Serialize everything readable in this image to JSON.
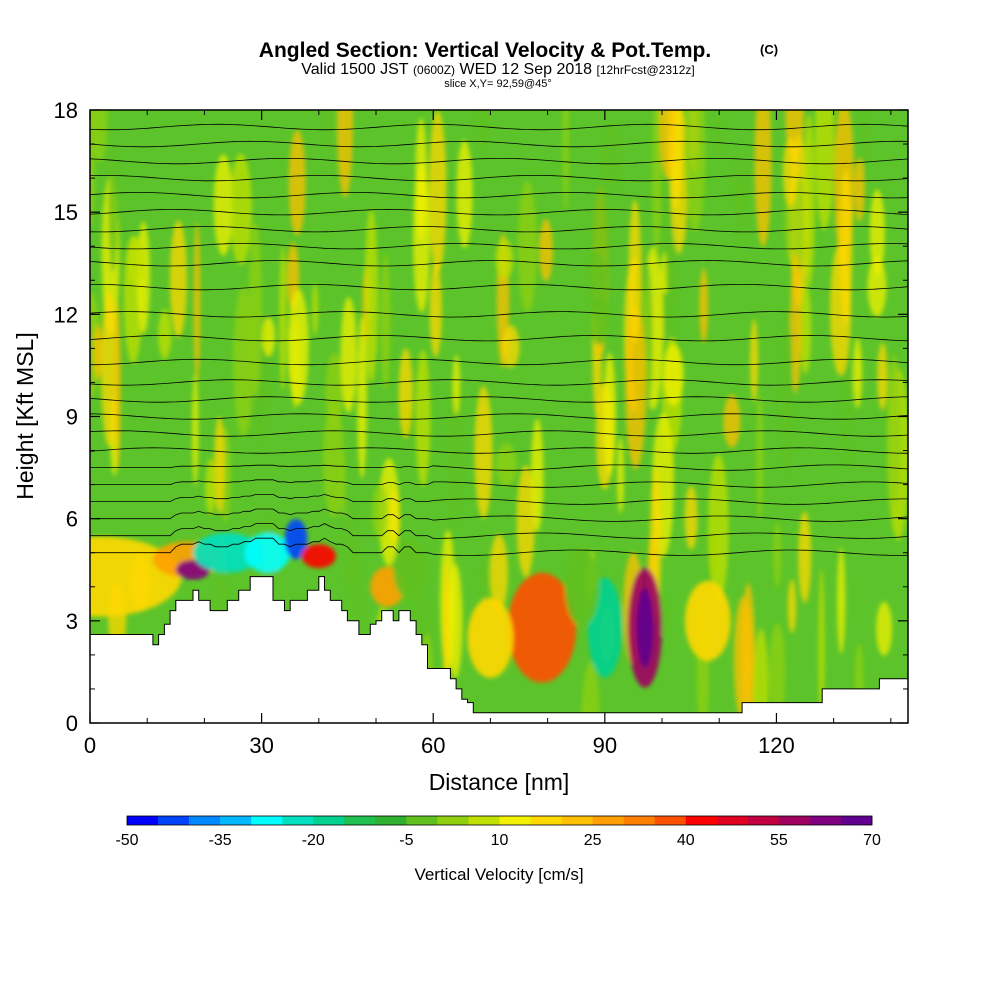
{
  "header": {
    "title": "Angled Section: Vertical Velocity & Pot.Temp.",
    "title_suffix": "(C)",
    "valid_part1": "Valid 1500 JST",
    "valid_part2": "(0600Z)",
    "valid_part3": "WED 12 Sep 2018",
    "valid_part4": "[12hrFcst@2312z]",
    "slice": "slice X,Y= 92,59@45°"
  },
  "chart_data": {
    "type": "heatmap",
    "xlabel": "Distance [nm]",
    "ylabel": "Height [Kft MSL]",
    "xlim": [
      0,
      143
    ],
    "ylim": [
      0,
      18
    ],
    "x_ticks": [
      0,
      30,
      60,
      90,
      120
    ],
    "x_tick_labels": [
      "0",
      "30",
      "60",
      "90",
      "120"
    ],
    "y_ticks": [
      0,
      3,
      6,
      9,
      12,
      15,
      18
    ],
    "y_tick_labels": [
      "0",
      "3",
      "6",
      "9",
      "12",
      "15",
      "18"
    ],
    "colorbar": {
      "title": "Vertical Velocity [cm/s]",
      "min": -50,
      "max": 70,
      "step": 5,
      "tick_values": [
        -50,
        -35,
        -20,
        -5,
        10,
        25,
        40,
        55,
        70
      ],
      "tick_labels": [
        "-50",
        "-35",
        "-20",
        "-5",
        "10",
        "25",
        "40",
        "55",
        "70"
      ],
      "colors": [
        "#0000ff",
        "#0044ff",
        "#0088ff",
        "#00b8ff",
        "#00ffff",
        "#00e0c0",
        "#00d090",
        "#20c050",
        "#30b030",
        "#60c020",
        "#90d010",
        "#c0e000",
        "#f0f000",
        "#ffd800",
        "#ffc000",
        "#ffa000",
        "#ff8000",
        "#ff5000",
        "#ff0000",
        "#e00020",
        "#c00040",
        "#a00060",
        "#800080",
        "#600090"
      ]
    },
    "terrain_profile": {
      "x": [
        0,
        4,
        7,
        10,
        11,
        12,
        13,
        14,
        15,
        16,
        18,
        19,
        20,
        21,
        23,
        24,
        25,
        26,
        27,
        28,
        31,
        32,
        33,
        34,
        35,
        36,
        38,
        40,
        41,
        42,
        43,
        44,
        45,
        46,
        47,
        48,
        49,
        50,
        51,
        52,
        53,
        54,
        55,
        56,
        57,
        58,
        59,
        60,
        61,
        62,
        63,
        64,
        65,
        66,
        67,
        68,
        69,
        70,
        75,
        80,
        85,
        90,
        95,
        100,
        105,
        110,
        113,
        114,
        120,
        125,
        127,
        128,
        135,
        137,
        138,
        143
      ],
      "height_kft": [
        2.6,
        2.6,
        2.6,
        2.6,
        2.3,
        2.6,
        2.9,
        3.3,
        3.6,
        3.6,
        3.9,
        3.6,
        3.6,
        3.3,
        3.3,
        3.6,
        3.6,
        3.9,
        3.9,
        4.3,
        4.3,
        3.6,
        3.6,
        3.3,
        3.6,
        3.6,
        3.9,
        4.3,
        3.9,
        3.6,
        3.6,
        3.3,
        3.0,
        3.0,
        2.6,
        2.6,
        2.9,
        3.0,
        3.3,
        3.3,
        3.0,
        3.3,
        3.3,
        3.0,
        2.6,
        2.3,
        1.6,
        1.6,
        1.6,
        1.6,
        1.3,
        1.0,
        0.7,
        0.6,
        0.3,
        0.3,
        0.3,
        0.3,
        0.3,
        0.3,
        0.3,
        0.3,
        0.3,
        0.3,
        0.3,
        0.3,
        0.3,
        0.6,
        0.6,
        0.6,
        0.6,
        1.0,
        1.0,
        1.0,
        1.3,
        1.3
      ]
    },
    "isentropes_kft": [
      5.0,
      5.5,
      6.0,
      6.5,
      7.0,
      7.5,
      8.0,
      8.5,
      9.0,
      9.5,
      10.0,
      10.6,
      11.3,
      12.0,
      12.8,
      13.5,
      14.0,
      14.5,
      15.0,
      15.5,
      16.0,
      16.5,
      17.0,
      17.5
    ]
  }
}
